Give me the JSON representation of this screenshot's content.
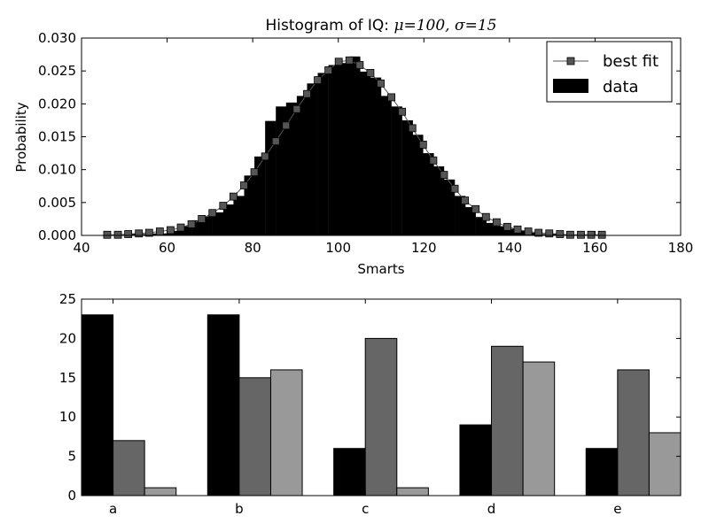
{
  "chart_data": [
    {
      "type": "bar",
      "title_prefix": "Histogram of IQ: ",
      "title_math": "μ=100, σ=15",
      "xlabel": "Smarts",
      "ylabel": "Probability",
      "xlim": [
        40,
        180
      ],
      "ylim": [
        0,
        0.03
      ],
      "xticks": [
        "40",
        "60",
        "80",
        "100",
        "120",
        "140",
        "160",
        "180"
      ],
      "yticks": [
        "0.000",
        "0.005",
        "0.010",
        "0.015",
        "0.020",
        "0.025",
        "0.030"
      ],
      "legend_position": "top-right",
      "colors": {
        "data": "#000000",
        "fit": "#555555"
      },
      "series": [
        {
          "name": "data",
          "kind": "histogram",
          "bin_width": 2.46,
          "bin_left": [
            46.0,
            48.5,
            50.9,
            53.4,
            55.8,
            58.3,
            60.8,
            63.2,
            65.7,
            68.1,
            70.6,
            73.1,
            75.5,
            78.0,
            80.4,
            82.9,
            85.4,
            87.8,
            90.3,
            92.7,
            95.2,
            97.7,
            100.1,
            102.6,
            105.0,
            107.5,
            109.9,
            112.4,
            114.9,
            117.3,
            119.8,
            122.2,
            124.7,
            127.2,
            129.6,
            132.1,
            134.5,
            137.0,
            139.5,
            141.9,
            144.4,
            146.8,
            149.3,
            151.8,
            154.2,
            156.7,
            159.1
          ],
          "values": [
            0.0001,
            0.0001,
            0.0002,
            0.0002,
            0.0003,
            0.0003,
            0.0007,
            0.0014,
            0.0023,
            0.0029,
            0.0035,
            0.0047,
            0.006,
            0.0091,
            0.012,
            0.0174,
            0.0196,
            0.0202,
            0.0212,
            0.0231,
            0.0247,
            0.0259,
            0.0262,
            0.0272,
            0.0249,
            0.024,
            0.0212,
            0.0196,
            0.0175,
            0.0153,
            0.0125,
            0.0105,
            0.0085,
            0.006,
            0.0043,
            0.0028,
            0.0019,
            0.0014,
            0.001,
            0.0007,
            0.0004,
            0.0002,
            0.0002,
            0.0001,
            0.0001,
            0.0001,
            0.0001
          ]
        },
        {
          "name": "best fit",
          "kind": "line",
          "x": [
            46.0,
            48.5,
            50.9,
            53.4,
            55.8,
            58.3,
            60.8,
            63.2,
            65.7,
            68.1,
            70.6,
            73.1,
            75.5,
            78.0,
            80.4,
            82.9,
            85.4,
            87.8,
            90.3,
            92.7,
            95.2,
            97.7,
            100.1,
            102.6,
            105.0,
            107.5,
            109.9,
            112.4,
            114.9,
            117.3,
            119.8,
            122.2,
            124.7,
            127.2,
            129.6,
            132.1,
            134.5,
            137.0,
            139.5,
            141.9,
            144.4,
            146.8,
            149.3,
            151.8,
            154.2,
            156.7,
            159.1,
            161.6
          ],
          "y": [
            0.0001,
            0.0001,
            0.0002,
            0.0003,
            0.0004,
            0.0006,
            0.0008,
            0.0012,
            0.0017,
            0.0025,
            0.0034,
            0.0045,
            0.0059,
            0.0076,
            0.0096,
            0.012,
            0.0143,
            0.0167,
            0.0192,
            0.0215,
            0.0236,
            0.0251,
            0.0264,
            0.0266,
            0.0259,
            0.0247,
            0.0231,
            0.021,
            0.0188,
            0.0163,
            0.0138,
            0.0114,
            0.0092,
            0.0071,
            0.0053,
            0.004,
            0.0028,
            0.002,
            0.0013,
            0.0009,
            0.0006,
            0.0004,
            0.0003,
            0.0002,
            0.0001,
            0.0001,
            0.0001,
            0.0001
          ]
        }
      ]
    },
    {
      "type": "bar",
      "categories": [
        "a",
        "b",
        "c",
        "d",
        "e"
      ],
      "ylim": [
        0,
        25
      ],
      "yticks": [
        "0",
        "5",
        "10",
        "15",
        "20",
        "25"
      ],
      "series": [
        {
          "color": "#000000",
          "values": [
            23,
            23,
            6,
            9,
            6
          ]
        },
        {
          "color": "#666666",
          "values": [
            7,
            15,
            20,
            19,
            16
          ]
        },
        {
          "color": "#999999",
          "values": [
            1,
            16,
            1,
            17,
            8
          ]
        }
      ]
    }
  ]
}
